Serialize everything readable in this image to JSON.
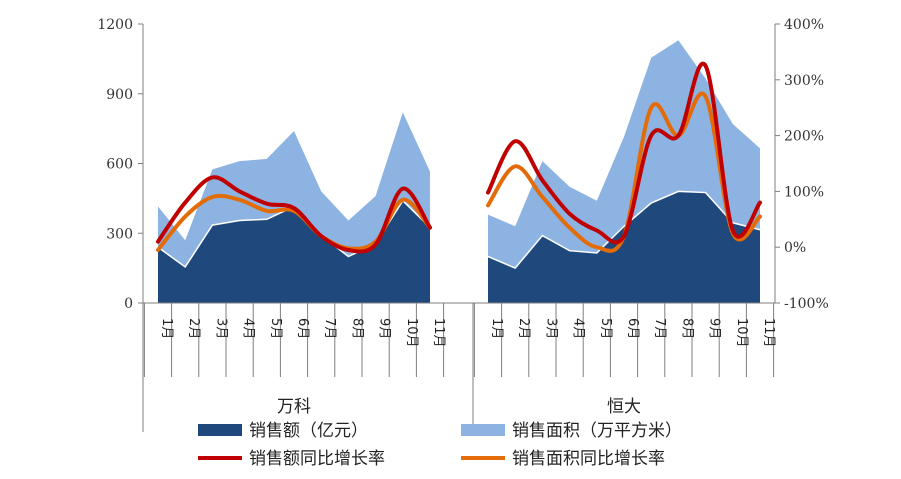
{
  "chart_data": {
    "type": "area",
    "groups": [
      {
        "name": "万科",
        "categories": [
          "1月",
          "2月",
          "3月",
          "4月",
          "5月",
          "6月",
          "7月",
          "8月",
          "9月",
          "10月",
          "11月"
        ],
        "series": [
          {
            "name": "销售额（亿元）",
            "values": [
              240,
              155,
              335,
              355,
              360,
              415,
              290,
              200,
              255,
              440,
              325
            ]
          },
          {
            "name": "销售面积（万平方米）",
            "values": [
              415,
              270,
              575,
              610,
              620,
              740,
              480,
              355,
              460,
              820,
              565
            ]
          },
          {
            "name": "销售额同比增长率",
            "values": [
              0.1,
              0.8,
              1.25,
              1.0,
              0.78,
              0.7,
              0.2,
              -0.05,
              0.05,
              1.05,
              0.35
            ]
          },
          {
            "name": "销售面积同比增长率",
            "values": [
              -0.05,
              0.55,
              0.9,
              0.85,
              0.65,
              0.65,
              0.2,
              -0.02,
              0.1,
              0.85,
              0.35
            ]
          }
        ]
      },
      {
        "name": "恒大",
        "categories": [
          "1月",
          "2月",
          "3月",
          "4月",
          "5月",
          "6月",
          "7月",
          "8月",
          "9月",
          "10月",
          "11月"
        ],
        "series": [
          {
            "name": "销售额（亿元）",
            "values": [
              200,
              150,
              290,
              225,
              215,
              330,
              430,
              480,
              475,
              345,
              315
            ]
          },
          {
            "name": "销售面积（万平方米）",
            "values": [
              380,
              330,
              610,
              500,
              440,
              715,
              1055,
              1130,
              965,
              770,
              665
            ]
          },
          {
            "name": "销售额同比增长率",
            "values": [
              0.98,
              1.9,
              1.2,
              0.6,
              0.3,
              0.2,
              2.0,
              2.0,
              3.25,
              0.3,
              0.8
            ]
          },
          {
            "name": "销售面积同比增长率",
            "values": [
              0.75,
              1.45,
              0.9,
              0.35,
              0.0,
              0.2,
              2.5,
              2.0,
              2.7,
              0.25,
              0.55
            ]
          }
        ]
      }
    ],
    "y_left": {
      "min": 0,
      "max": 1200,
      "ticks": [
        "0",
        "300",
        "600",
        "900",
        "1200"
      ]
    },
    "y_right": {
      "min": -1,
      "max": 4,
      "ticks": [
        "-100%",
        "0%",
        "100%",
        "200%",
        "300%",
        "400%"
      ]
    },
    "legend_position": "bottom",
    "grid": false,
    "colors": {
      "sales_amount": "#1F497D",
      "sales_area": "#8DB3E2",
      "sales_amount_yoy": "#C00000",
      "sales_area_yoy": "#E36C09"
    }
  }
}
